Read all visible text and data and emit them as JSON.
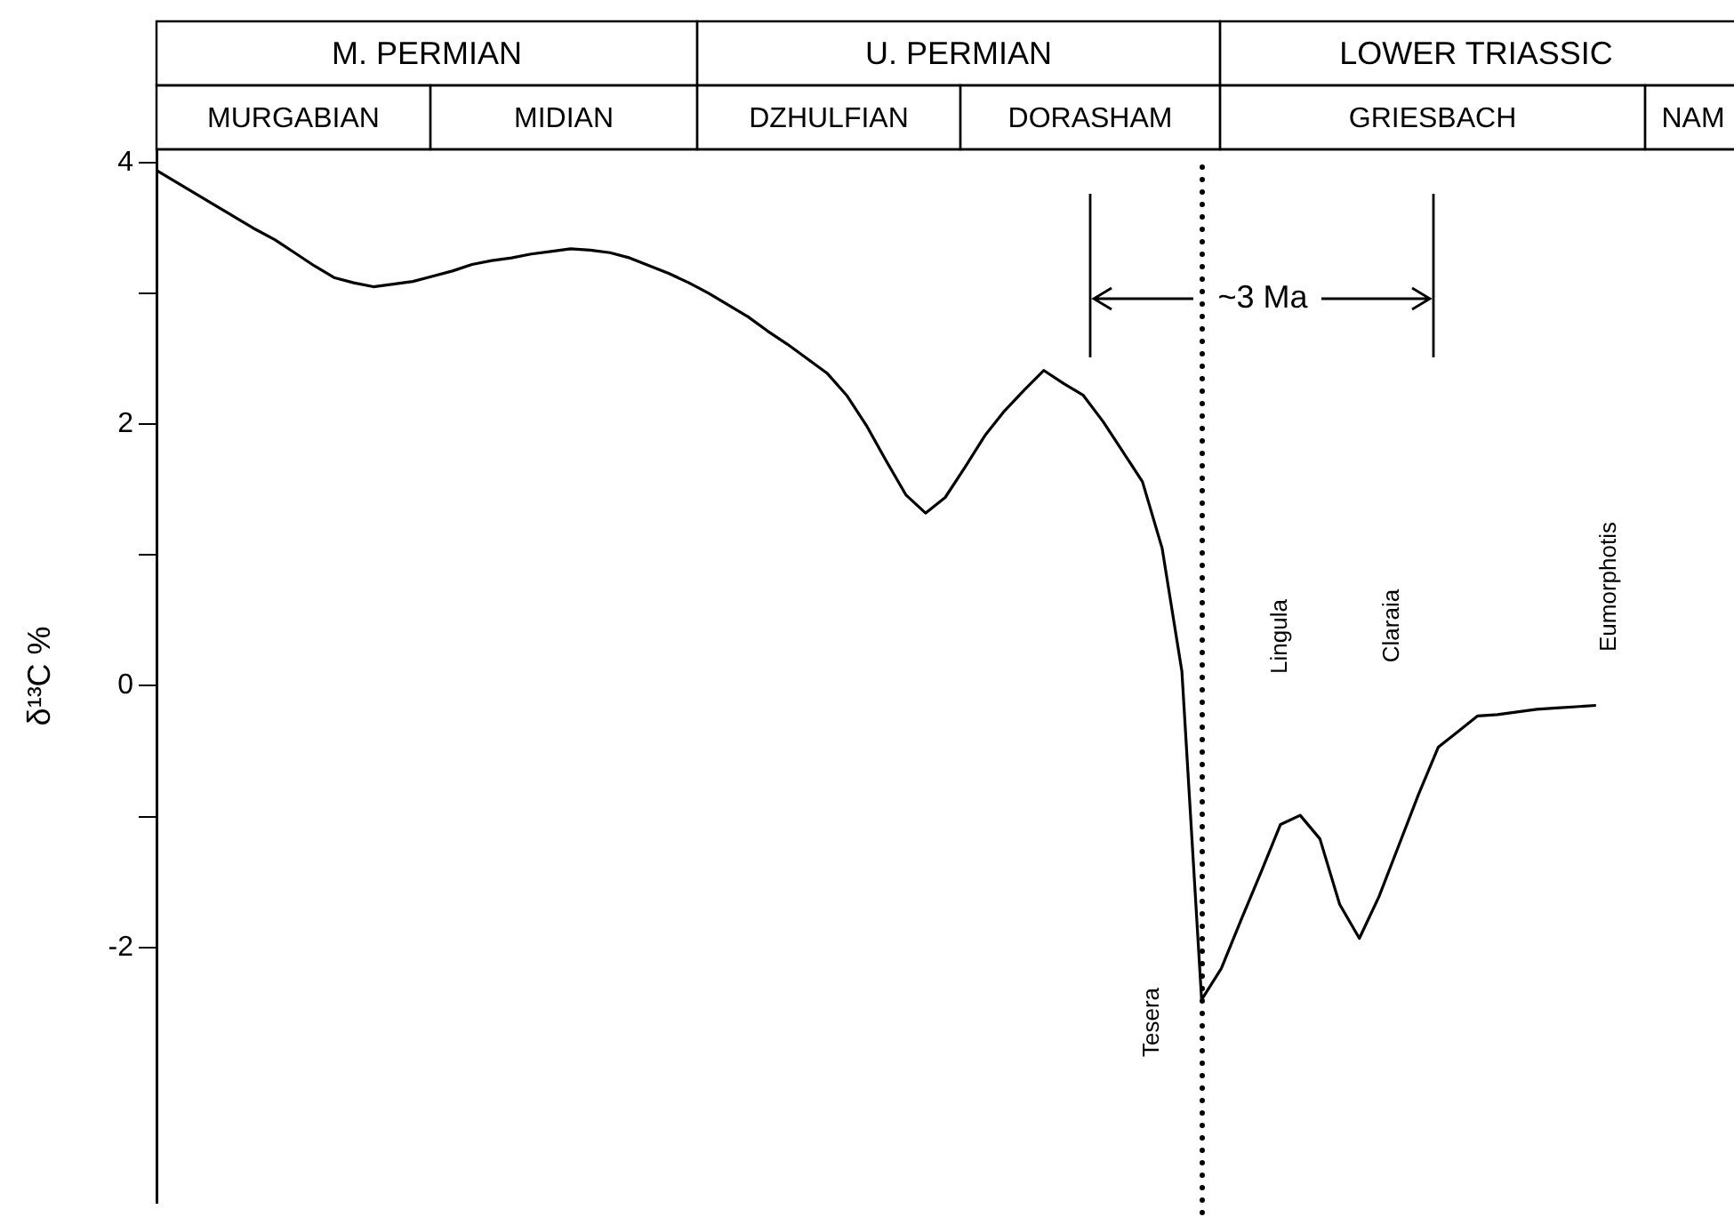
{
  "chart_data": {
    "type": "line",
    "ylabel": "δ¹³C %",
    "ylim": [
      -3.95,
      4.1
    ],
    "yticks": [
      -2,
      {
        "value": -1,
        "label": null
      },
      0,
      {
        "value": 1,
        "label": null
      },
      2,
      {
        "value": 3,
        "label": null
      },
      4
    ],
    "categories": [
      null,
      null,
      null,
      null,
      null,
      null,
      null,
      null,
      null,
      null,
      null,
      null,
      null,
      null,
      null,
      null,
      null,
      null,
      null,
      null,
      null,
      null,
      null,
      null,
      null,
      null,
      null,
      null,
      null,
      null,
      null,
      null,
      null,
      null,
      null,
      null,
      null,
      null,
      null,
      null,
      null,
      null,
      null,
      null,
      null,
      null,
      null,
      null,
      null,
      null,
      null,
      null,
      null,
      null,
      null,
      null,
      null,
      null,
      null,
      null,
      null,
      null,
      null,
      null,
      null,
      null,
      null,
      null,
      null,
      null,
      null,
      null,
      null,
      null
    ],
    "tick_labels": "y",
    "grid": false,
    "legend": false,
    "marker": "none",
    "line_style": "solid",
    "series": [
      {
        "color": "#000000",
        "values": [
          3.94,
          3.85,
          3.76,
          3.67,
          3.58,
          3.49,
          3.41,
          3.31,
          3.21,
          3.12,
          3.08,
          3.05,
          3.07,
          3.09,
          3.13,
          3.17,
          3.22,
          3.25,
          3.27,
          3.3,
          3.32,
          3.34,
          3.33,
          3.31,
          3.27,
          3.21,
          3.15,
          3.08,
          3.0,
          2.91,
          2.82,
          2.71,
          2.61,
          2.5,
          2.39,
          2.22,
          1.99,
          1.72,
          1.46,
          1.32,
          1.44,
          1.67,
          1.91,
          2.1,
          2.26,
          2.41,
          2.31,
          2.22,
          2.02,
          1.79,
          1.56,
          1.05,
          0.11,
          -2.4,
          -2.16,
          -1.79,
          -1.43,
          -1.06,
          -0.99,
          -1.17,
          -1.67,
          -1.93,
          -1.61,
          -1.22,
          -0.83,
          -0.47,
          -0.35,
          -0.23,
          -0.22,
          -0.2,
          -0.18,
          -0.17,
          -0.16,
          -0.15
        ]
      }
    ],
    "annotations": [
      "M. PERMIAN",
      "U. PERMIAN",
      "LOWER TRIASSIC",
      "MURGABIAN",
      "MIDIAN",
      "DZHULFIAN",
      "DORASHAM",
      "GRIESBACH",
      "NAM",
      "~3 Ma",
      "Tesera",
      "Lingula",
      "Claraia",
      "Eumorphotis"
    ]
  }
}
